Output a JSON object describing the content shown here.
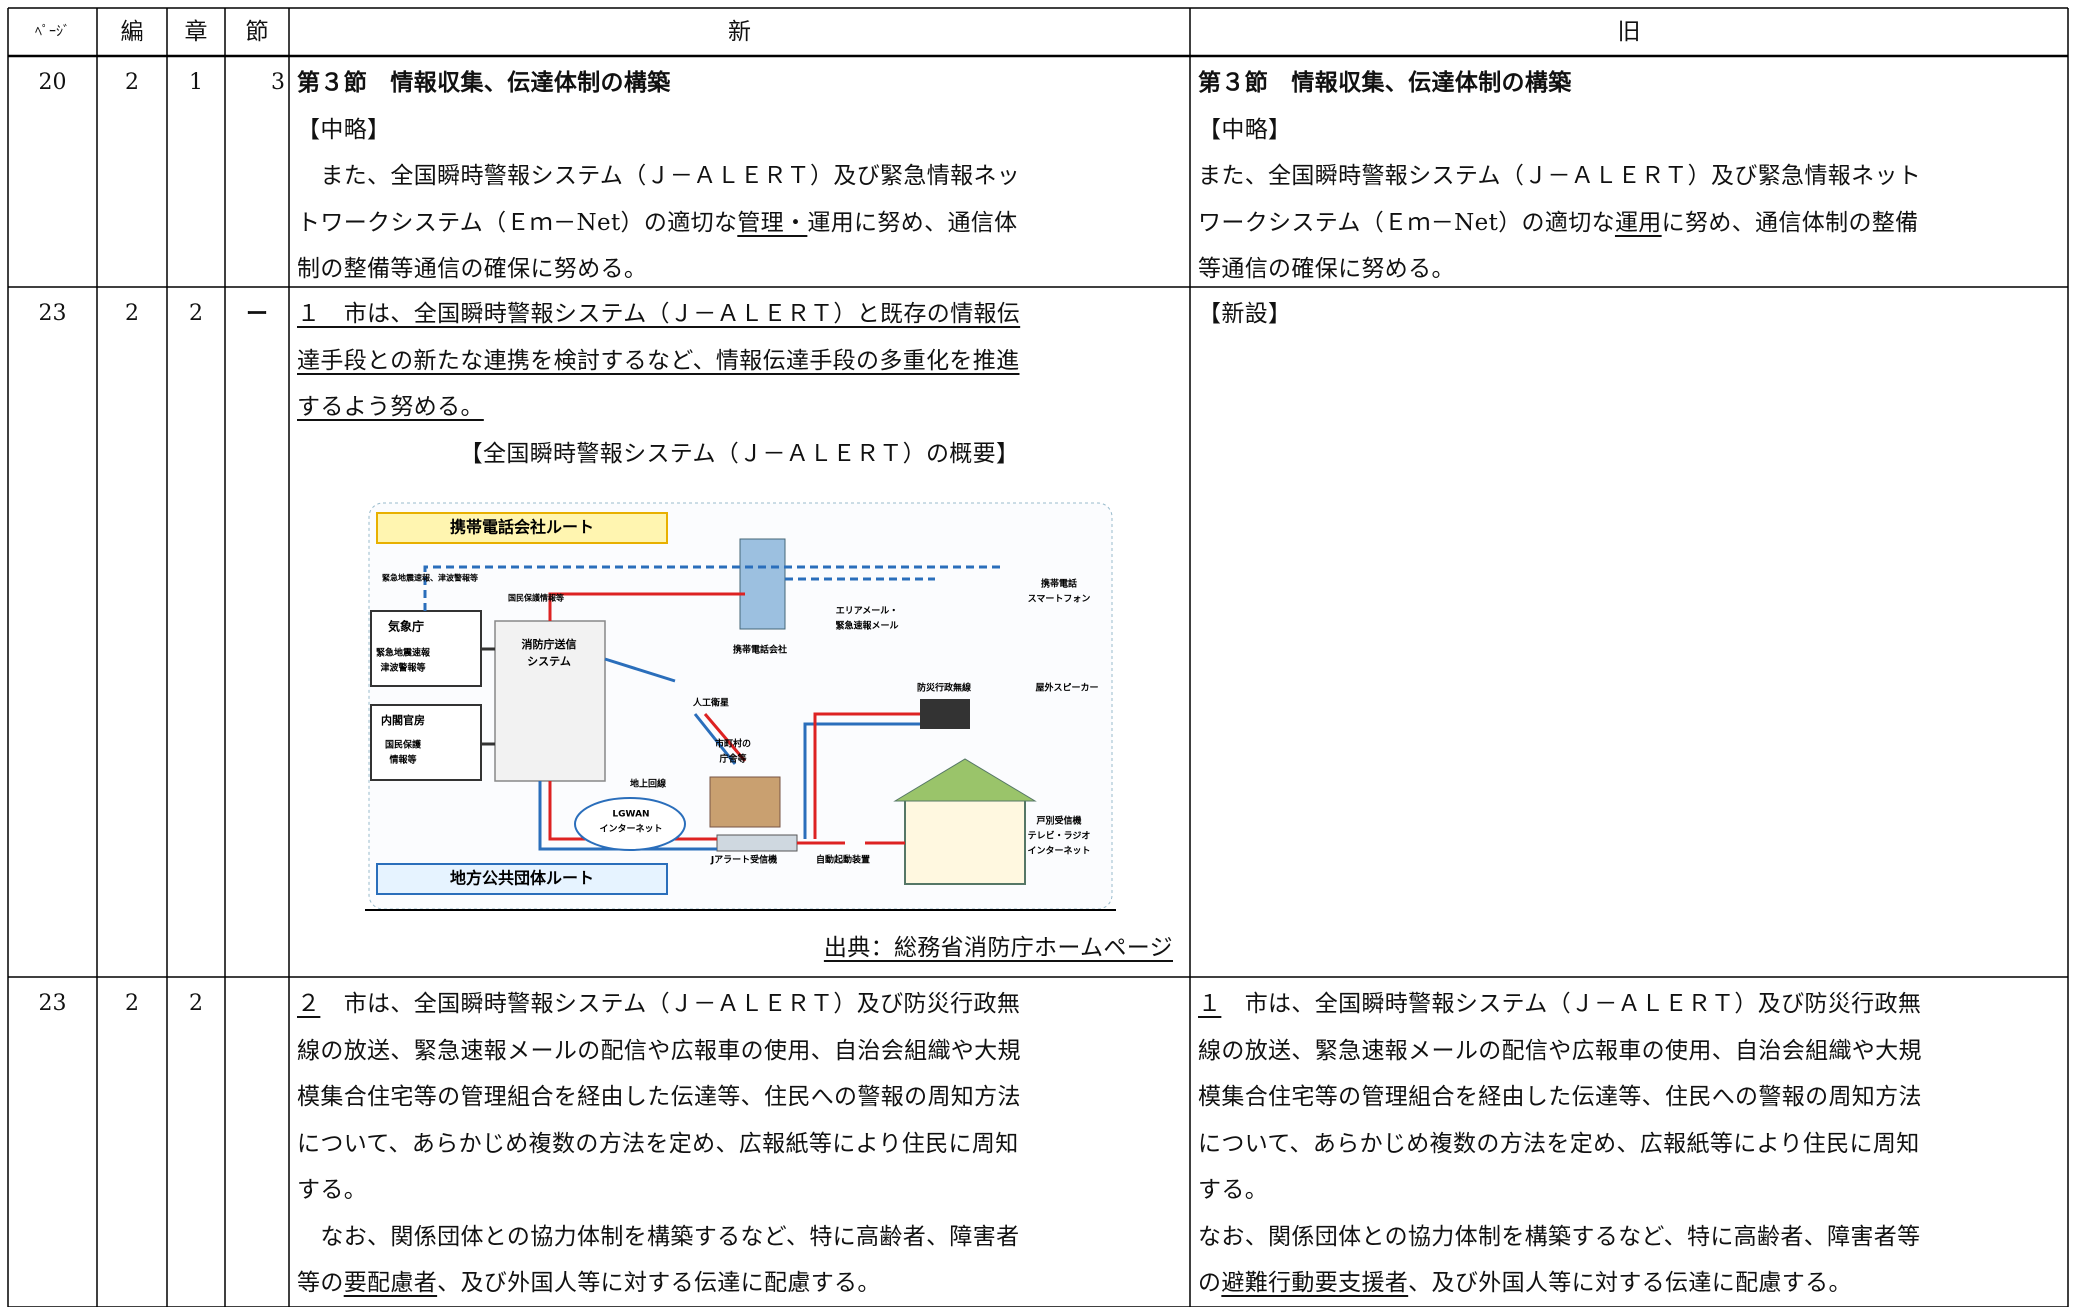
{
  "header": [
    "ﾍﾟｰｼﾞ",
    "編",
    "章",
    "節",
    "新",
    "旧"
  ],
  "rows": [
    {
      "page": "20",
      "hen": "2",
      "sho": "1",
      "setsu": "3",
      "new": [
        [
          {
            "t": "第３節　情報収集、伝達体制の構築",
            "b": true
          }
        ],
        [
          {
            "t": "【中略】"
          }
        ],
        [
          {
            "t": "　また、全国瞬時警報システム（Ｊ－ＡＬＥＲＴ）及び緊急情報ネッ"
          }
        ],
        [
          {
            "t": "トワークシステム（Ｅｍ－Net）の適切な"
          },
          {
            "t": "管理・",
            "u": true
          },
          {
            "t": "運用に努め、通信体"
          }
        ],
        [
          {
            "t": "制の整備等通信の確保に努める。"
          }
        ]
      ],
      "old": [
        [
          {
            "t": "第３節　情報収集、伝達体制の構築",
            "b": true
          }
        ],
        [
          {
            "t": "【中略】"
          }
        ],
        [
          {
            "t": "また、全国瞬時警報システム（Ｊ－ＡＬＥＲＴ）及び緊急情報ネット"
          }
        ],
        [
          {
            "t": "ワークシステム（Ｅｍ－Net）の適切な"
          },
          {
            "t": "運用",
            "u": true
          },
          {
            "t": "に努め、通信体制の整備"
          }
        ],
        [
          {
            "t": "等通信の確保に努める。"
          }
        ]
      ]
    },
    {
      "page": "23",
      "hen": "2",
      "sho": "2",
      "setsu": "ー",
      "new": [
        [
          {
            "t": "１　市は、全国瞬時警報システム（Ｊ－ＡＬＥＲＴ）と既存の情報伝",
            "u": true
          }
        ],
        [
          {
            "t": "達手段との新たな連携を検討するなど、情報伝達手段の多重化を推進",
            "u": true
          }
        ],
        [
          {
            "t": "するよう努める。",
            "u": true
          }
        ]
      ],
      "caption": "【全国瞬時警報システム（Ｊ－ＡＬＥＲＴ）の概要】",
      "diagram": [
        [
          "携帯電話会社ルート"
        ],
        [
          "緊急地震速報、津波警報等"
        ],
        [
          "国民保護情報等"
        ],
        [
          "気象庁"
        ],
        [
          "緊急地震速報",
          "津波警報等"
        ],
        [
          "内閣官房"
        ],
        [
          "国民保護",
          "情報等"
        ],
        [
          "消防庁送信",
          "システム"
        ],
        [
          "携帯電話会社"
        ],
        [
          "エリアメール・",
          "緊急速報メール"
        ],
        [
          "携帯電話",
          "スマートフォン"
        ],
        [
          "人工衛星"
        ],
        [
          "防災行政無線"
        ],
        [
          "屋外スピーカー"
        ],
        [
          "市町村の",
          "庁舎等"
        ],
        [
          "地上回線"
        ],
        [
          "LGWAN",
          "インターネット"
        ],
        [
          "Jアラート受信機"
        ],
        [
          "自動起動装置"
        ],
        [
          "戸別受信機",
          "テレビ・ラジオ",
          "インターネット"
        ],
        [
          "地方公共団体ルート"
        ]
      ],
      "source": "出典：総務省消防庁ホームページ",
      "old": [
        [
          {
            "t": "【新設】"
          }
        ]
      ]
    },
    {
      "page": "23",
      "hen": "2",
      "sho": "2",
      "new": [
        [
          {
            "t": "２",
            "u": true
          },
          {
            "t": "　市は、全国瞬時警報システム（Ｊ－ＡＬＥＲＴ）及び防災行政無"
          }
        ],
        [
          {
            "t": "線の放送、緊急速報メールの配信や広報車の使用、自治会組織や大規"
          }
        ],
        [
          {
            "t": "模集合住宅等の管理組合を経由した伝達等、住民への警報の周知方法"
          }
        ],
        [
          {
            "t": "について、あらかじめ複数の方法を定め、広報紙等により住民に周知"
          }
        ],
        [
          {
            "t": "する。"
          }
        ],
        [
          {
            "t": "　なお、関係団体との協力体制を構築するなど、特に高齢者、障害者"
          }
        ],
        [
          {
            "t": "等の"
          },
          {
            "t": "要配慮者",
            "u": true
          },
          {
            "t": "、及び外国人等に対する伝達に配慮する。"
          }
        ]
      ],
      "old": [
        [
          {
            "t": "１",
            "u": true
          },
          {
            "t": "　市は、全国瞬時警報システム（Ｊ－ＡＬＥＲＴ）及び防災行政無"
          }
        ],
        [
          {
            "t": "線の放送、緊急速報メールの配信や広報車の使用、自治会組織や大規"
          }
        ],
        [
          {
            "t": "模集合住宅等の管理組合を経由した伝達等、住民への警報の周知方法"
          }
        ],
        [
          {
            "t": "について、あらかじめ複数の方法を定め、広報紙等により住民に周知"
          }
        ],
        [
          {
            "t": "する。"
          }
        ],
        [
          {
            "t": "なお、関係団体との協力体制を構築するなど、特に高齢者、障害者等"
          }
        ],
        [
          {
            "t": "の"
          },
          {
            "t": "避難行動要支援者",
            "u": true
          },
          {
            "t": "、及び外国人等に対する伝達に配慮する。"
          }
        ]
      ]
    }
  ]
}
